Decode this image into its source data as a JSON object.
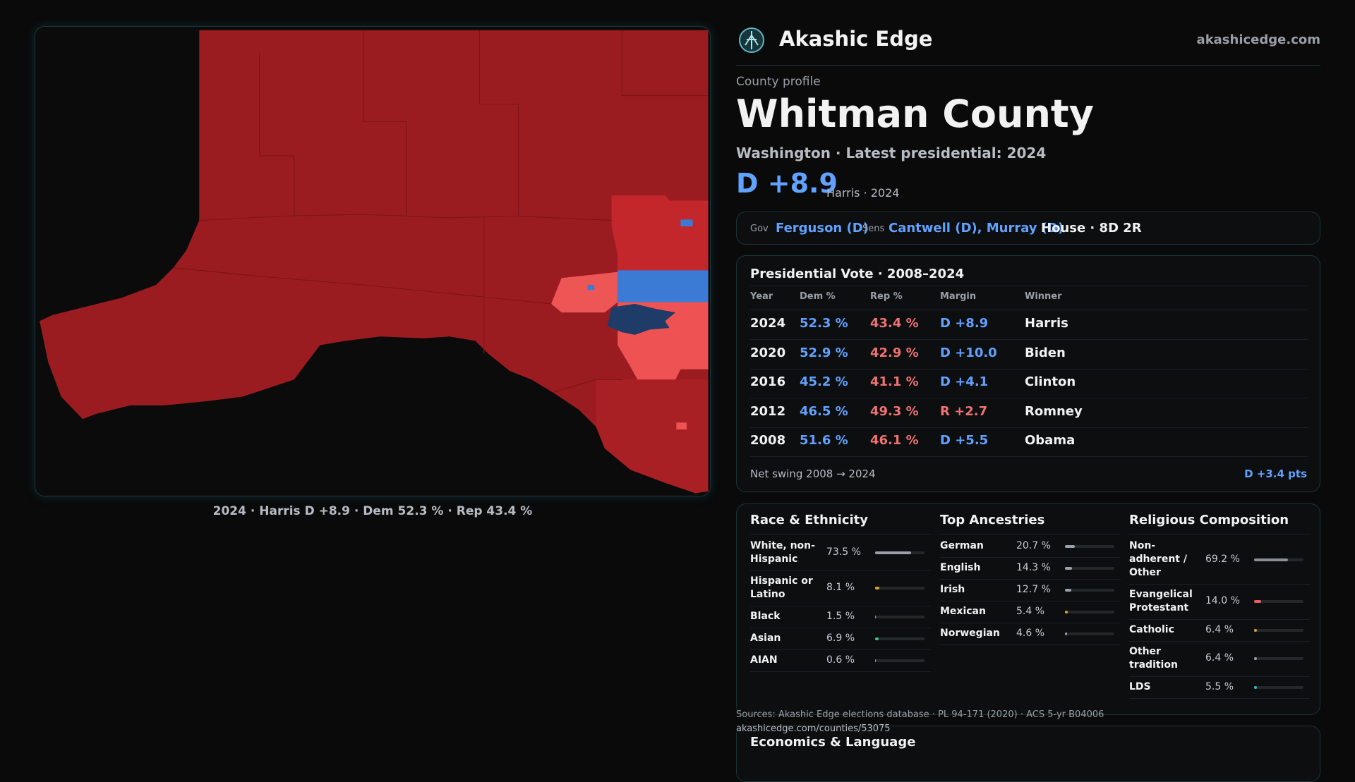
{
  "header": {
    "brand": "Akashic Edge",
    "site": "akashicedge.com"
  },
  "profile": {
    "eyebrow": "County profile",
    "title": "Whitman County",
    "subtitle": "Washington · Latest presidential: 2024",
    "margin": "D +8.9",
    "margin_note": "Harris · 2024"
  },
  "officials": {
    "gov_label": "Gov",
    "gov": "Ferguson (D)",
    "sens_label": "Sens",
    "sens": "Cantwell (D), Murray (D)",
    "house": "House · 8D 2R"
  },
  "map": {
    "caption": "2024 · Harris D +8.9 · Dem 52.3 % · Rep 43.4 %"
  },
  "presidential": {
    "title": "Presidential Vote · 2008–2024",
    "columns": [
      "Year",
      "Dem %",
      "Rep %",
      "Margin",
      "Winner"
    ],
    "rows": [
      [
        "2024",
        "52.3 %",
        "43.4 %",
        "D +8.9",
        "Harris"
      ],
      [
        "2020",
        "52.9 %",
        "42.9 %",
        "D +10.0",
        "Biden"
      ],
      [
        "2016",
        "45.2 %",
        "41.1 %",
        "D +4.1",
        "Clinton"
      ],
      [
        "2012",
        "46.5 %",
        "49.3 %",
        "R +2.7",
        "Romney"
      ],
      [
        "2008",
        "51.6 %",
        "46.1 %",
        "D +5.5",
        "Obama"
      ]
    ],
    "swing_label": "Net swing 2008 → 2024",
    "swing_value": "D +3.4 pts"
  },
  "demographics": {
    "race": {
      "title": "Race & Ethnicity",
      "rows": [
        {
          "label": "White, non-Hispanic",
          "value": 73.5,
          "value_label": "73.5 %",
          "color": "#9aa0aa"
        },
        {
          "label": "Hispanic or Latino",
          "value": 8.1,
          "value_label": "8.1 %",
          "color": "#e0a030"
        },
        {
          "label": "Black",
          "value": 1.5,
          "value_label": "1.5 %",
          "color": "#9aa0aa"
        },
        {
          "label": "Asian",
          "value": 6.9,
          "value_label": "6.9 %",
          "color": "#3ec08a"
        },
        {
          "label": "AIAN",
          "value": 0.6,
          "value_label": "0.6 %",
          "color": "#9aa0aa"
        }
      ]
    },
    "ancestry": {
      "title": "Top Ancestries",
      "rows": [
        {
          "label": "German",
          "value": 20.7,
          "value_label": "20.7 %",
          "color": "#9aa0aa"
        },
        {
          "label": "English",
          "value": 14.3,
          "value_label": "14.3 %",
          "color": "#9aa0aa"
        },
        {
          "label": "Irish",
          "value": 12.7,
          "value_label": "12.7 %",
          "color": "#9aa0aa"
        },
        {
          "label": "Mexican",
          "value": 5.4,
          "value_label": "5.4 %",
          "color": "#e0a030"
        },
        {
          "label": "Norwegian",
          "value": 4.6,
          "value_label": "4.6 %",
          "color": "#9aa0aa"
        }
      ]
    },
    "religion": {
      "title": "Religious Composition",
      "rows": [
        {
          "label": "Non-adherent / Other",
          "value": 69.2,
          "value_label": "69.2 %",
          "color": "#8a8f99"
        },
        {
          "label": "Evangelical Protestant",
          "value": 14.0,
          "value_label": "14.0 %",
          "color": "#f05a5a"
        },
        {
          "label": "Catholic",
          "value": 6.4,
          "value_label": "6.4 %",
          "color": "#e0a030"
        },
        {
          "label": "Other tradition",
          "value": 6.4,
          "value_label": "6.4 %",
          "color": "#9aa0aa"
        },
        {
          "label": "LDS",
          "value": 5.5,
          "value_label": "5.5 %",
          "color": "#3ab6c8"
        }
      ]
    }
  },
  "footer": {
    "sources": "Sources: Akashic Edge elections database · PL 94-171 (2020) · ACS 5-yr B04006",
    "url": "akashicedge.com/counties/53075"
  },
  "economics": {
    "title": "Economics & Language"
  }
}
